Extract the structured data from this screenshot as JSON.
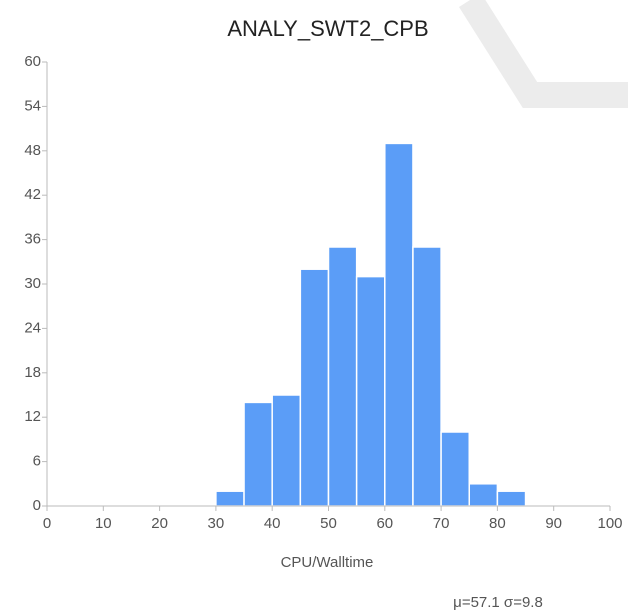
{
  "chart_data": {
    "type": "histogram",
    "title": "ANALY_SWT2_CPB",
    "x_label": "CPU/Walltime",
    "annotation": "μ=57.1 σ=9.8",
    "bins": [
      30,
      35,
      40,
      45,
      50,
      55,
      60,
      65,
      70,
      75,
      80,
      85
    ],
    "counts": [
      2,
      14,
      15,
      32,
      35,
      31,
      49,
      35,
      10,
      3,
      2
    ],
    "color": "#5b9df7",
    "xlim": [
      0,
      100
    ],
    "xticks": [
      0,
      10,
      20,
      30,
      40,
      50,
      60,
      70,
      80,
      90,
      100
    ],
    "ylim": [
      0,
      60
    ],
    "yticks": [
      0,
      6,
      12,
      18,
      24,
      30,
      36,
      42,
      48,
      54,
      60
    ]
  }
}
